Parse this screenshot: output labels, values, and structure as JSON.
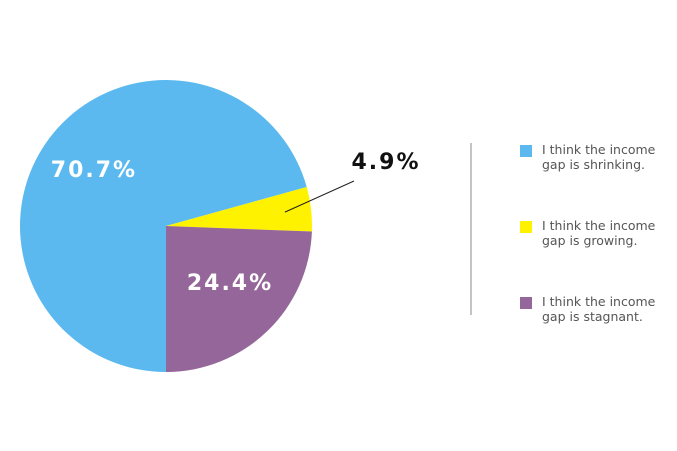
{
  "chart_data": {
    "type": "pie",
    "categories": [
      "I think the income gap is shrinking.",
      "I think the income gap is growing.",
      "I think the income gap is stagnant."
    ],
    "values": [
      70.7,
      4.9,
      24.4
    ],
    "value_labels": [
      "70.7%",
      "4.9%",
      "24.4%"
    ],
    "colors": [
      "#5bb9ef",
      "#fff200",
      "#956699"
    ],
    "legend": "right"
  }
}
